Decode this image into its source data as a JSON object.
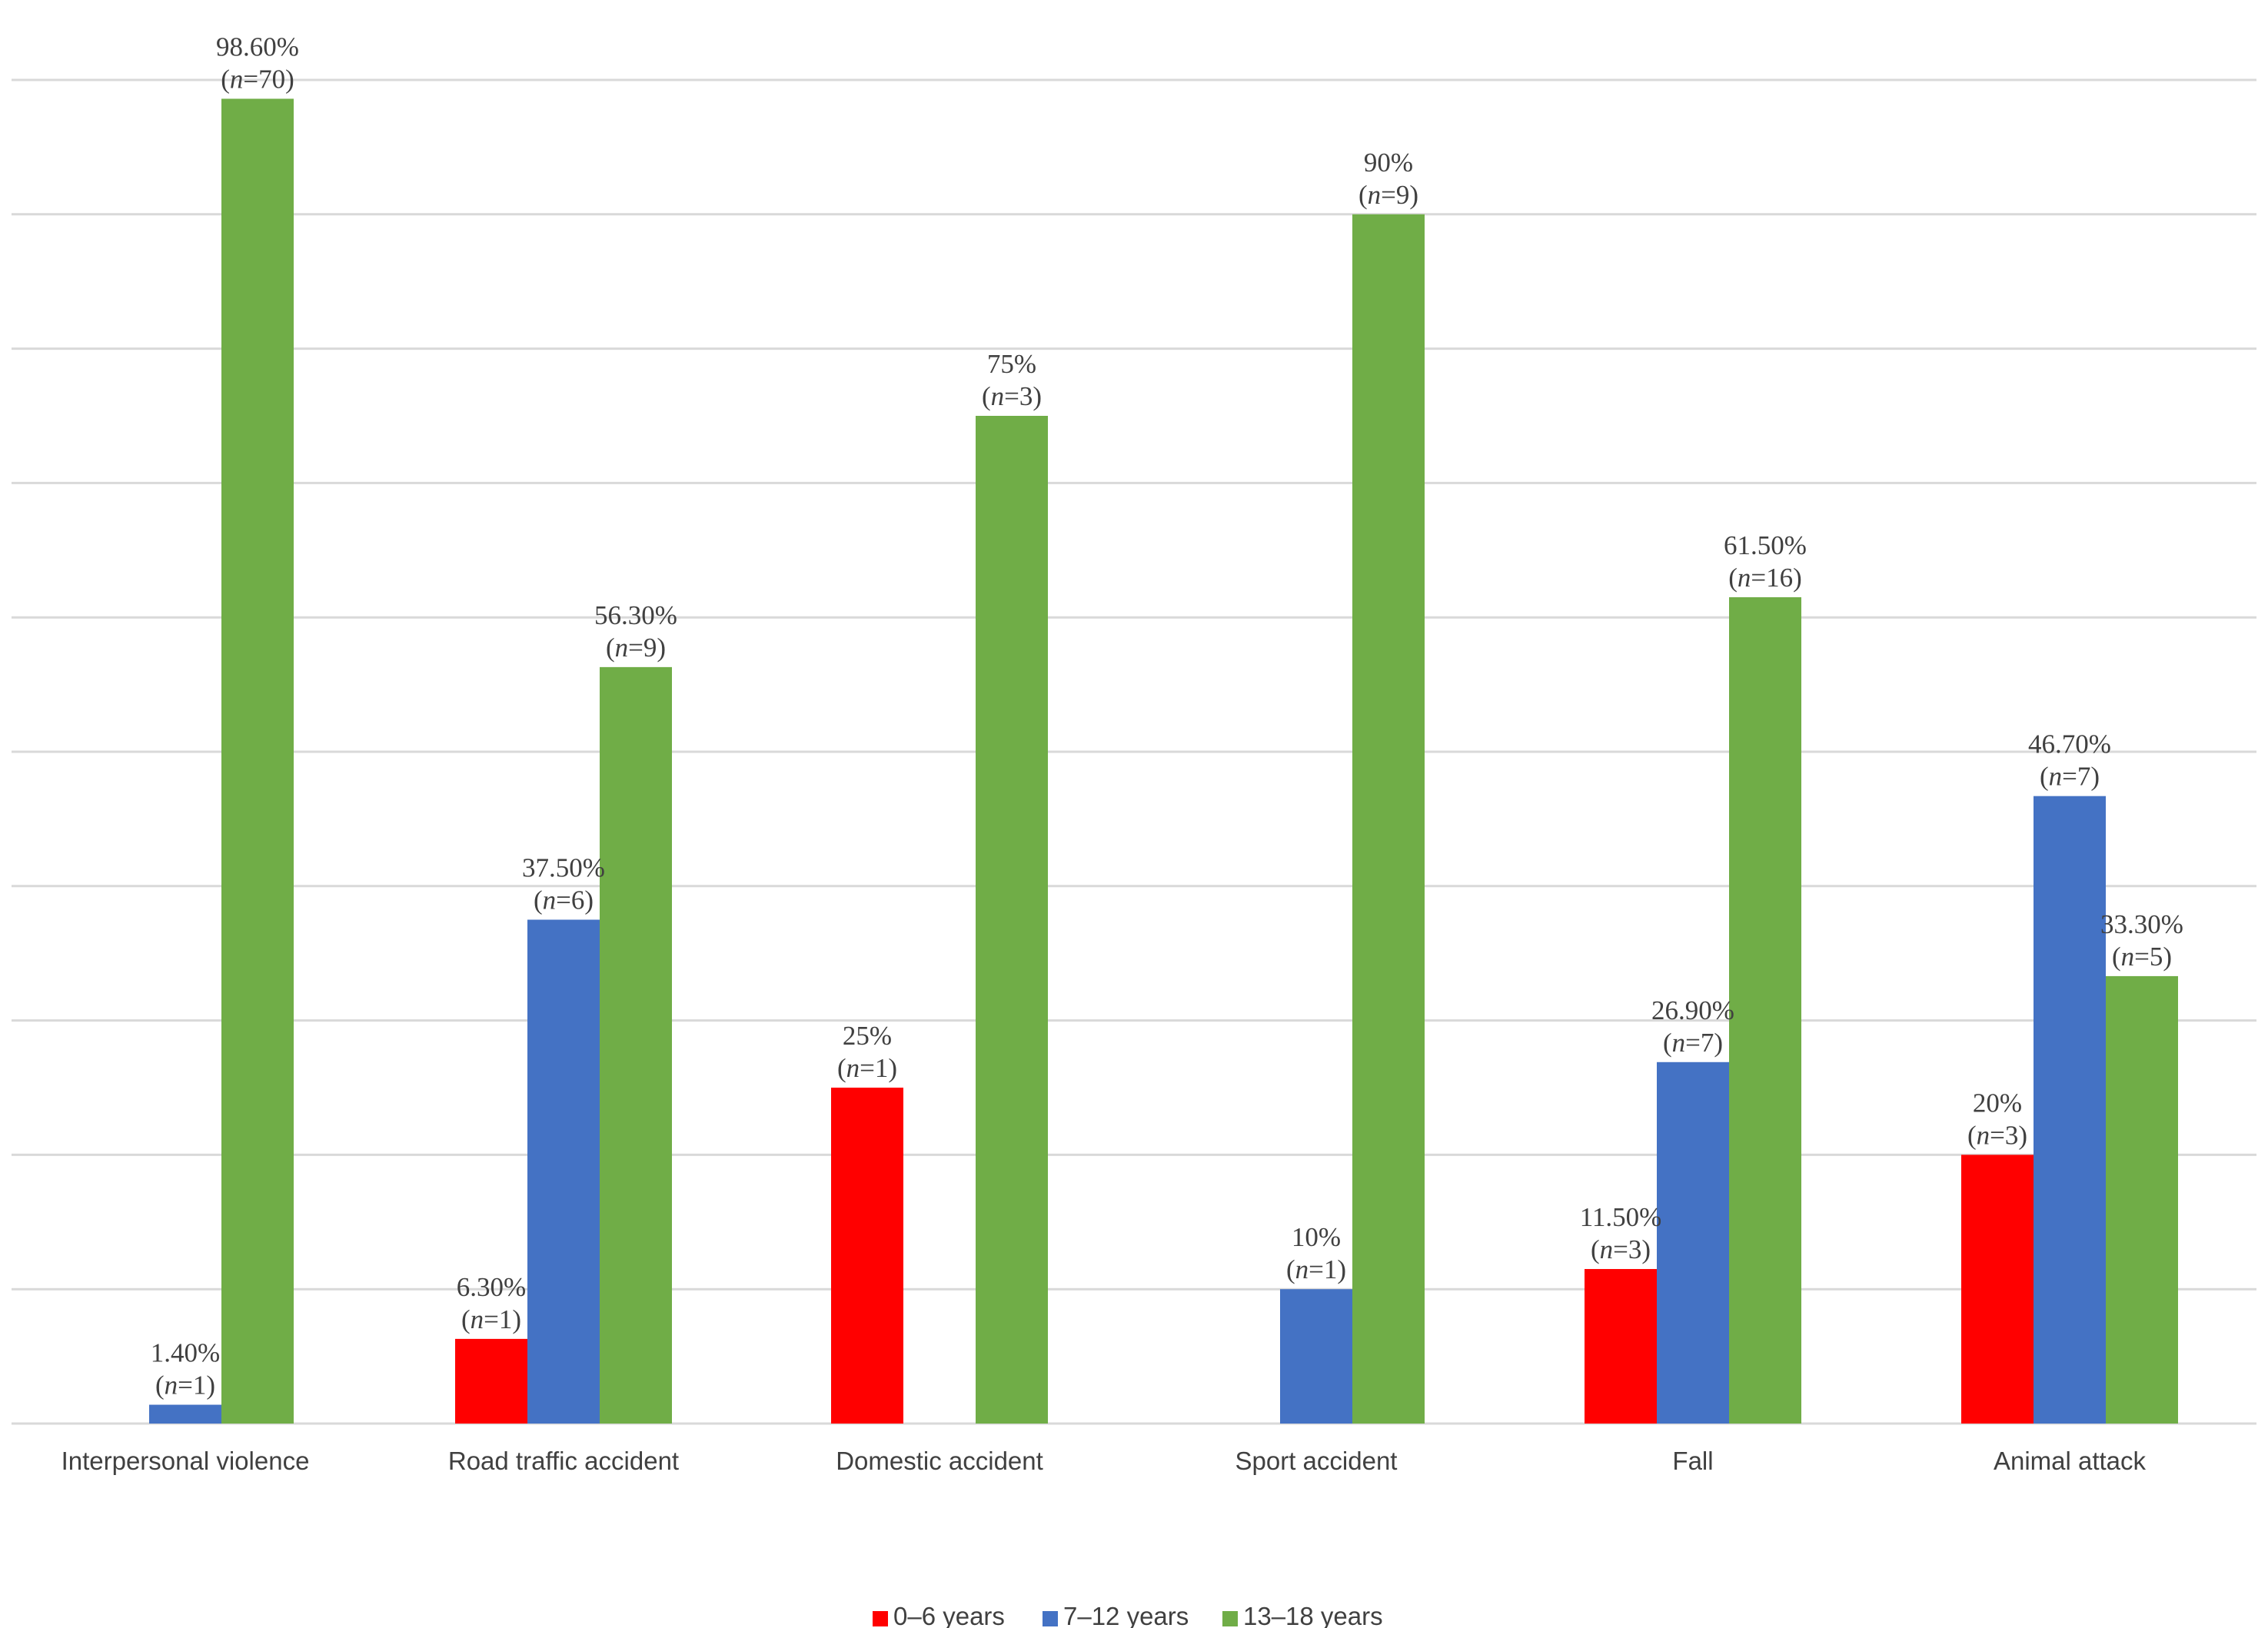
{
  "chart_data": {
    "type": "bar",
    "title": "",
    "xlabel": "",
    "ylabel": "",
    "ylim": [
      0,
      100
    ],
    "grid": true,
    "legend_position": "bottom",
    "categories": [
      "Interpersonal violence",
      "Road traffic accident",
      "Domestic accident",
      "Sport accident",
      "Fall",
      "Animal attack"
    ],
    "series": [
      {
        "name": "0–6 years",
        "color": "#ff0000",
        "values": [
          null,
          6.3,
          25,
          null,
          11.5,
          20
        ],
        "labels": [
          null,
          "6.30%",
          "25%",
          null,
          "11.50%",
          "20%"
        ],
        "n": [
          null,
          "1",
          "1",
          null,
          "3",
          "3"
        ]
      },
      {
        "name": "7–12 years",
        "color": "#4472c4",
        "values": [
          1.4,
          37.5,
          null,
          10,
          26.9,
          46.7
        ],
        "labels": [
          "1.40%",
          "37.50%",
          null,
          "10%",
          "26.90%",
          "46.70%"
        ],
        "n": [
          "1",
          "6",
          null,
          "1",
          "7",
          "7"
        ]
      },
      {
        "name": "13–18 years",
        "color": "#70ad47",
        "values": [
          98.6,
          56.3,
          75,
          90,
          61.5,
          33.3
        ],
        "labels": [
          "98.60%",
          "56.30%",
          "75%",
          "90%",
          "61.50%",
          "33.30%"
        ],
        "n": [
          "70",
          "9",
          "3",
          "9",
          "16",
          "5"
        ]
      }
    ]
  }
}
